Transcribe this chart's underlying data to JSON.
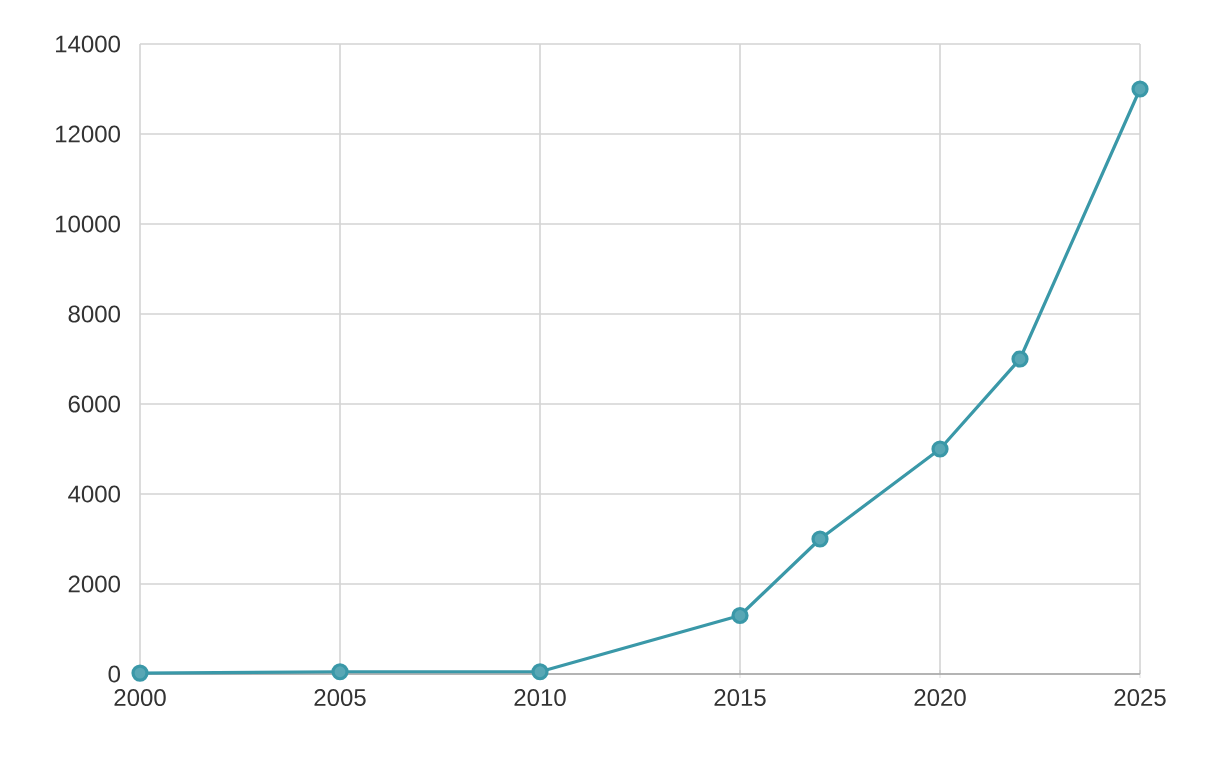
{
  "chart_data": {
    "type": "line",
    "x": [
      2000,
      2005,
      2010,
      2015,
      2017,
      2020,
      2022,
      2025
    ],
    "values": [
      20,
      50,
      50,
      1300,
      3000,
      5000,
      7000,
      13000
    ],
    "color": "#3a98a8",
    "marker": "circle",
    "line_style": "solid",
    "grid": true,
    "xlim": [
      2000,
      2025
    ],
    "xticks": [
      2000,
      2005,
      2010,
      2015,
      2020,
      2025
    ],
    "ylim": [
      0,
      14000
    ],
    "yticks": [
      0,
      2000,
      4000,
      6000,
      8000,
      10000,
      12000,
      14000
    ]
  }
}
